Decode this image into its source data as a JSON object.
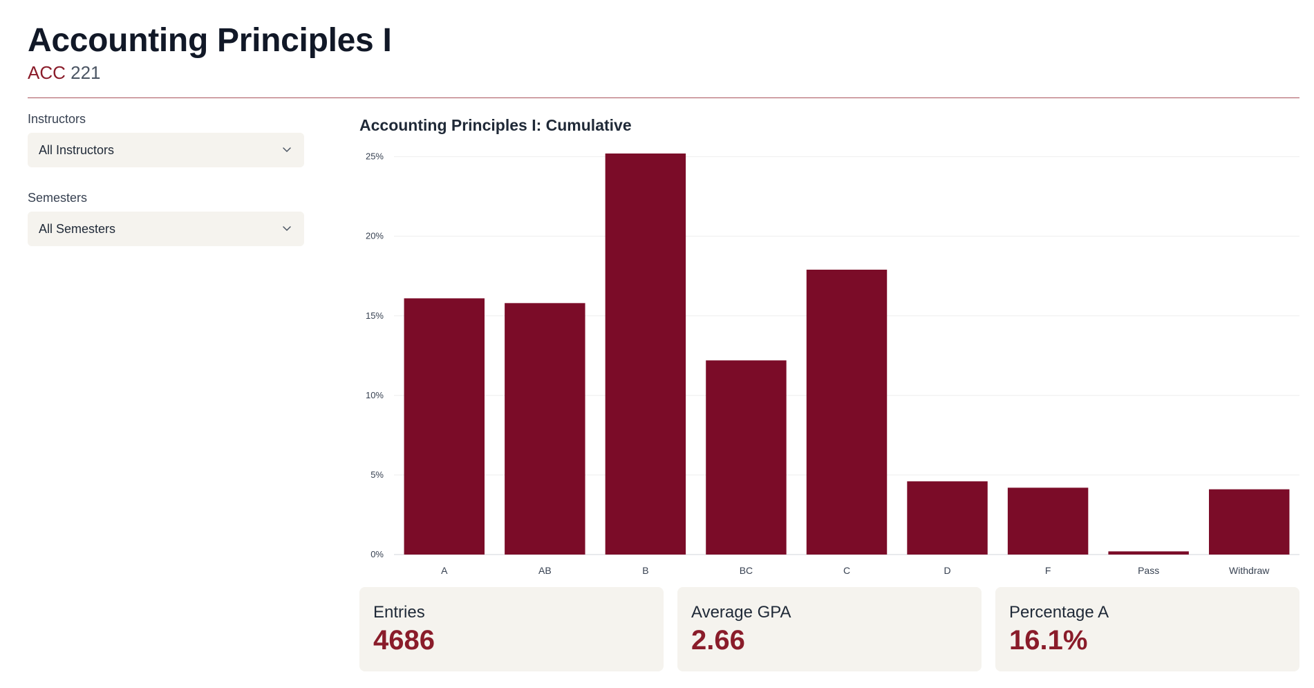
{
  "header": {
    "title": "Accounting Principles I",
    "dept": "ACC",
    "number": "221"
  },
  "filters": {
    "instructors": {
      "label": "Instructors",
      "selected": "All Instructors"
    },
    "semesters": {
      "label": "Semesters",
      "selected": "All Semesters"
    }
  },
  "chart_data": {
    "type": "bar",
    "title": "Accounting Principles I: Cumulative",
    "xlabel": "",
    "ylabel": "",
    "categories": [
      "A",
      "AB",
      "B",
      "BC",
      "C",
      "D",
      "F",
      "Pass",
      "Withdraw"
    ],
    "values": [
      16.1,
      15.8,
      25.2,
      12.2,
      17.9,
      4.6,
      4.2,
      0.2,
      4.1
    ],
    "yticks": [
      "0%",
      "5%",
      "10%",
      "15%",
      "20%",
      "25%"
    ],
    "ylim": [
      0,
      25.2
    ],
    "grid": true,
    "legend": "none",
    "bar_color": "#7b0c28"
  },
  "stats": {
    "entries": {
      "label": "Entries",
      "value": "4686"
    },
    "gpa": {
      "label": "Average GPA",
      "value": "2.66"
    },
    "percent_a": {
      "label": "Percentage A",
      "value": "16.1%"
    }
  },
  "colors": {
    "accent": "#8a1c2a",
    "card_bg": "#f5f3ee",
    "divider": "#a8515b"
  },
  "icons": {
    "dropdown": "chevron-down-icon"
  }
}
